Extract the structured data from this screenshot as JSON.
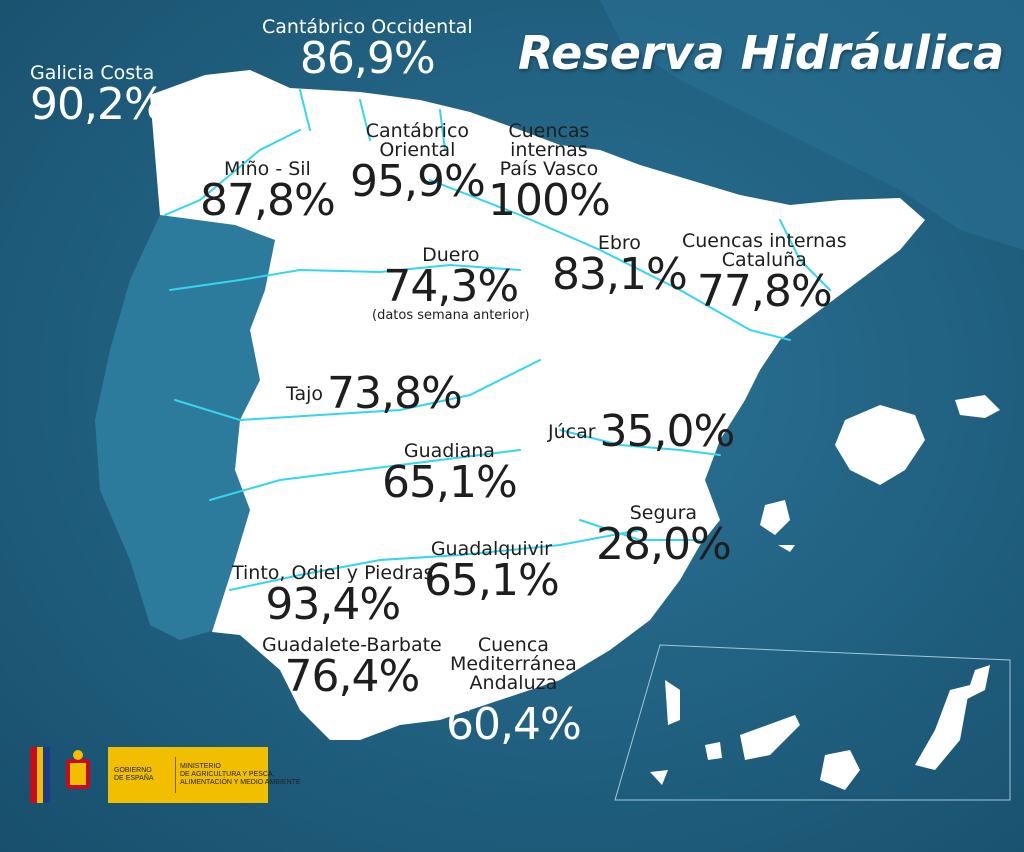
{
  "title": "Reserva Hidráulica",
  "basins": [
    {
      "id": "galicia-costa",
      "name": "Galicia Costa",
      "value": "90,2%"
    },
    {
      "id": "cantabrico-occidental",
      "name": "Cantábrico Occidental",
      "value": "86,9%"
    },
    {
      "id": "mino-sil",
      "name": "Miño - Sil",
      "value": "87,8%"
    },
    {
      "id": "cantabrico-oriental",
      "name": "Cantábrico\nOriental",
      "value": "95,9%"
    },
    {
      "id": "pais-vasco",
      "name": "Cuencas\ninternas\nPaís Vasco",
      "value": "100%"
    },
    {
      "id": "duero",
      "name": "Duero",
      "value": "74,3%",
      "note": "(datos semana anterior)"
    },
    {
      "id": "ebro",
      "name": "Ebro",
      "value": "83,1%"
    },
    {
      "id": "cataluna",
      "name": "Cuencas internas\nCataluña",
      "value": "77,8%"
    },
    {
      "id": "tajo",
      "name": "Tajo",
      "value": "73,8%"
    },
    {
      "id": "jucar",
      "name": "Júcar",
      "value": "35,0%"
    },
    {
      "id": "guadiana",
      "name": "Guadiana",
      "value": "65,1%"
    },
    {
      "id": "segura",
      "name": "Segura",
      "value": "28,0%"
    },
    {
      "id": "guadalquivir",
      "name": "Guadalquivir",
      "value": "65,1%"
    },
    {
      "id": "tinto-odiel-piedras",
      "name": "Tinto, Odiel y Piedras",
      "value": "93,4%"
    },
    {
      "id": "guadalete-barbate",
      "name": "Guadalete-Barbate",
      "value": "76,4%"
    },
    {
      "id": "mediterranea-andaluza",
      "name": "Cuenca\nMediterránea\nAndaluza",
      "value": "60,4%"
    }
  ],
  "logo": {
    "gobierno": "GOBIERNO\nDE ESPAÑA",
    "ministerio": "MINISTERIO\nDE AGRICULTURA Y PESCA,\nALIMENTACIÓN Y MEDIO AMBIENTE"
  },
  "colors": {
    "sea": "#1f5f80",
    "land": "#ffffff",
    "river": "#33d6ef",
    "portugal": "#2d7b9c",
    "text": "#1e1e1e"
  }
}
